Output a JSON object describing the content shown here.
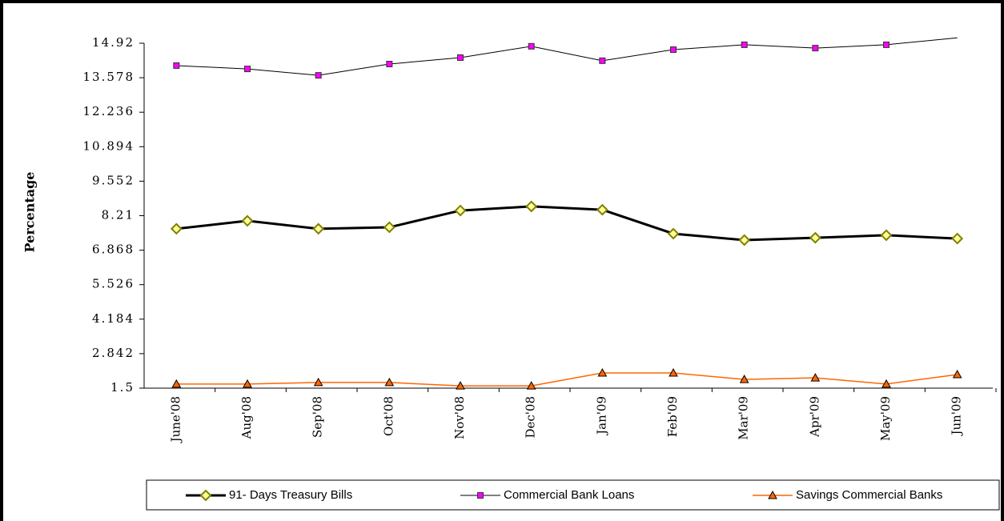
{
  "chart_data": {
    "type": "line",
    "y_label": "Percentage",
    "categories": [
      "June'08",
      "Aug'08",
      "Sep'08",
      "Oct'08",
      "Nov'08",
      "Dec'08",
      "Jan'09",
      "Feb'09",
      "Mar'09",
      "Apr'09",
      "May'09",
      "Jun'09"
    ],
    "series": [
      {
        "name": "91- Days Treasury Bills",
        "color": "#000000",
        "marker": "diamond",
        "marker_color": "#ffff99",
        "line_width": 3,
        "values": [
          7.7,
          8.01,
          7.7,
          7.76,
          8.41,
          8.57,
          8.44,
          7.51,
          7.26,
          7.35,
          7.45,
          7.32
        ]
      },
      {
        "name": "Commercial Bank Loans",
        "color": "#000000",
        "marker": "square",
        "marker_color": "#ff00ff",
        "line_width": 1,
        "values": [
          14.05,
          13.92,
          13.67,
          14.11,
          14.36,
          14.8,
          14.24,
          14.67,
          14.86,
          14.73,
          14.86,
          15.13
        ]
      },
      {
        "name": "Savings Commercial Banks",
        "color": "#ff6600",
        "marker": "triangle",
        "marker_color": "#ff6600",
        "line_width": 1.5,
        "values": [
          1.66,
          1.66,
          1.72,
          1.72,
          1.59,
          1.59,
          2.09,
          2.09,
          1.84,
          1.9,
          1.66,
          2.03
        ]
      }
    ],
    "ylim": [
      1.5,
      14.92
    ],
    "yticks": [
      1.5,
      2.842,
      4.184,
      5.526,
      6.868,
      8.21,
      9.552,
      10.894,
      12.236,
      13.578,
      14.92
    ],
    "grid": false,
    "legend": "bottom"
  }
}
